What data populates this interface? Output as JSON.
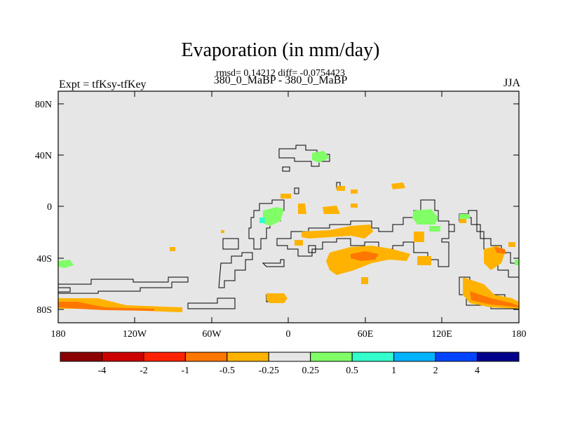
{
  "title": "Evaporation (in mm/day)",
  "stats_line": "rmsd= 0.14212 diff= -0.0754423",
  "subtitle": "380_0_MaBP - 380_0_MaBP",
  "left_label": "Expt = tfKsy-tfKey",
  "right_label": "JJA",
  "lat_ticks": [
    "80N",
    "40N",
    "0",
    "40S",
    "80S"
  ],
  "lon_ticks": [
    "180",
    "120W",
    "60W",
    "0",
    "60E",
    "120E",
    "180"
  ],
  "colorbar": {
    "colors": [
      "#8b0000",
      "#cc0000",
      "#ff2200",
      "#ff7700",
      "#ffb300",
      "#e6e6e6",
      "#80ff66",
      "#33ffcc",
      "#00b3ff",
      "#0044ff",
      "#00008b"
    ],
    "labels": [
      "-4",
      "-2",
      "-1",
      "-0.5",
      "-0.25",
      "0.25",
      "0.5",
      "1",
      "2",
      "4"
    ]
  }
}
